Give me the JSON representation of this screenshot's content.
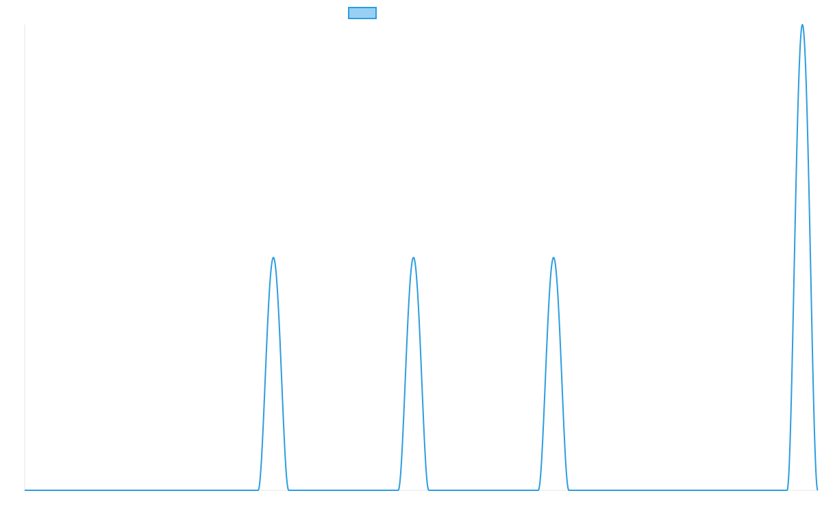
{
  "chart_data": {
    "type": "line",
    "title": "",
    "xlabel": "",
    "ylabel": "",
    "legend": {
      "position": "top-center",
      "series_name": ""
    },
    "grid": false,
    "xlim": [
      0,
      1000
    ],
    "ylim": [
      0,
      1
    ],
    "colors": {
      "line": "#2b9de0",
      "swatch_fill": "#98d0f3",
      "axis": "#e6e6e6"
    },
    "peaks": [
      {
        "center": 313.6,
        "height": 0.5
      },
      {
        "center": 490.2,
        "height": 0.5
      },
      {
        "center": 666.8,
        "height": 0.5
      },
      {
        "center": 980.5,
        "height": 1.0
      }
    ],
    "peak_half_width": 19.4,
    "series": [
      {
        "name": "",
        "x": [
          0,
          294.2,
          313.6,
          333.0,
          470.8,
          490.2,
          509.6,
          647.4,
          666.8,
          686.2,
          961.1,
          980.5,
          1000
        ],
        "y": [
          0,
          0,
          0.5,
          0,
          0,
          0.5,
          0,
          0,
          0.5,
          0,
          0,
          1.0,
          0
        ]
      }
    ]
  }
}
